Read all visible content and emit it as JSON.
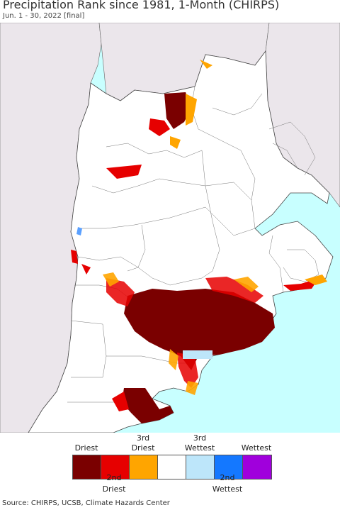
{
  "title": "Precipitation Rank since 1981, 1-Month (CHIRPS)",
  "subtitle": "Jun. 1 - 30, 2022 [final]",
  "legend": {
    "top_labels": [
      {
        "line1": "",
        "line2": "Driest"
      },
      {
        "line1": "3rd",
        "line2": "Driest"
      },
      {
        "line1": "3rd",
        "line2": "Wettest"
      },
      {
        "line1": "",
        "line2": "Wettest"
      }
    ],
    "bottom_labels": [
      {
        "line1": "2nd",
        "line2": "Driest"
      },
      {
        "line1": "2nd",
        "line2": "Wettest"
      }
    ],
    "colors": [
      "#7a0000",
      "#e60000",
      "#ffa500",
      "#ffffff",
      "#bde6fa",
      "#1478ff",
      "#a000dc"
    ]
  },
  "colors": {
    "ocean": "#c8ffff",
    "outside_land": "#ebe6eb",
    "region_land": "#ffffff",
    "boundary": "#555555"
  },
  "source": "Source: CHIRPS, UCSB, Climate Hazards Center"
}
